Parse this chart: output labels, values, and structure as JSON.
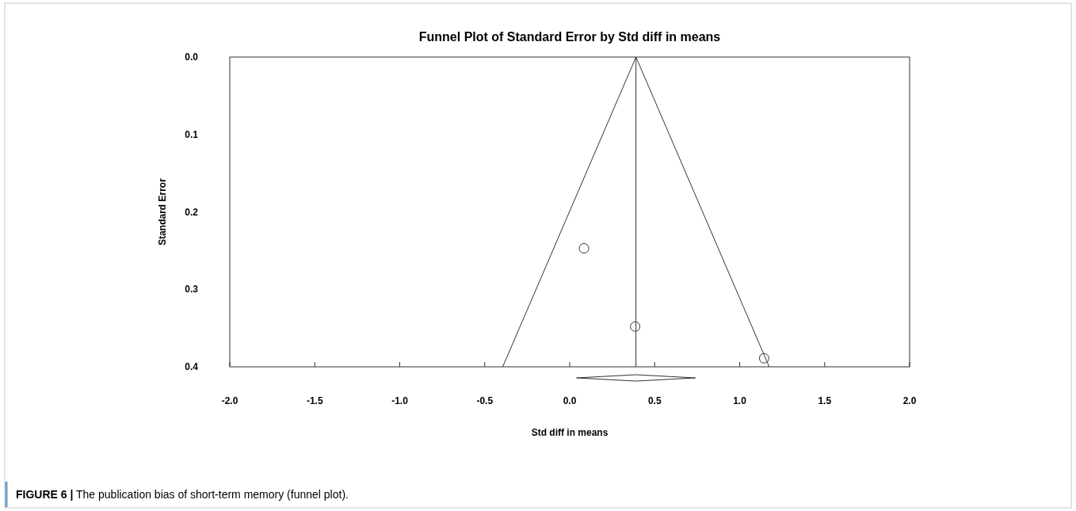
{
  "chart_data": {
    "type": "scatter",
    "title": "Funnel Plot of Standard Error by Std diff in means",
    "xlabel": "Std diff in means",
    "ylabel": "Standard Error",
    "xlim": [
      -2.0,
      2.0
    ],
    "xticks": [
      {
        "value": -2.0,
        "label": "-2.0"
      },
      {
        "value": -1.5,
        "label": "-1.5"
      },
      {
        "value": -1.0,
        "label": "-1.0"
      },
      {
        "value": -0.5,
        "label": "-0.5"
      },
      {
        "value": 0.0,
        "label": "0.0"
      },
      {
        "value": 0.5,
        "label": "0.5"
      },
      {
        "value": 1.0,
        "label": "1.0"
      },
      {
        "value": 1.5,
        "label": "1.5"
      },
      {
        "value": 2.0,
        "label": "2.0"
      }
    ],
    "ylim": [
      0.4,
      0.0
    ],
    "yticks": [
      {
        "value": 0.0,
        "label": "0.0"
      },
      {
        "value": 0.1,
        "label": "0.1"
      },
      {
        "value": 0.2,
        "label": "0.2"
      },
      {
        "value": 0.3,
        "label": "0.3"
      },
      {
        "value": 0.4,
        "label": "0.4"
      }
    ],
    "grid": false,
    "series": [
      {
        "type": "line",
        "color": "#333333",
        "x": [
          -0.394,
          0.39,
          1.174
        ],
        "values": [
          0.4,
          0.0,
          0.4
        ]
      },
      {
        "marker": "circle",
        "color": "#333333",
        "x": [
          0.084,
          0.385,
          1.144
        ],
        "values": [
          0.247,
          0.348,
          0.389
        ]
      }
    ],
    "ref_lines": [
      {
        "axis": "x",
        "value": 0.39,
        "color": "#333333"
      }
    ],
    "annotations": [
      "FIGURE 6 | The publication bias of short-term memory (funnel plot)."
    ]
  }
}
